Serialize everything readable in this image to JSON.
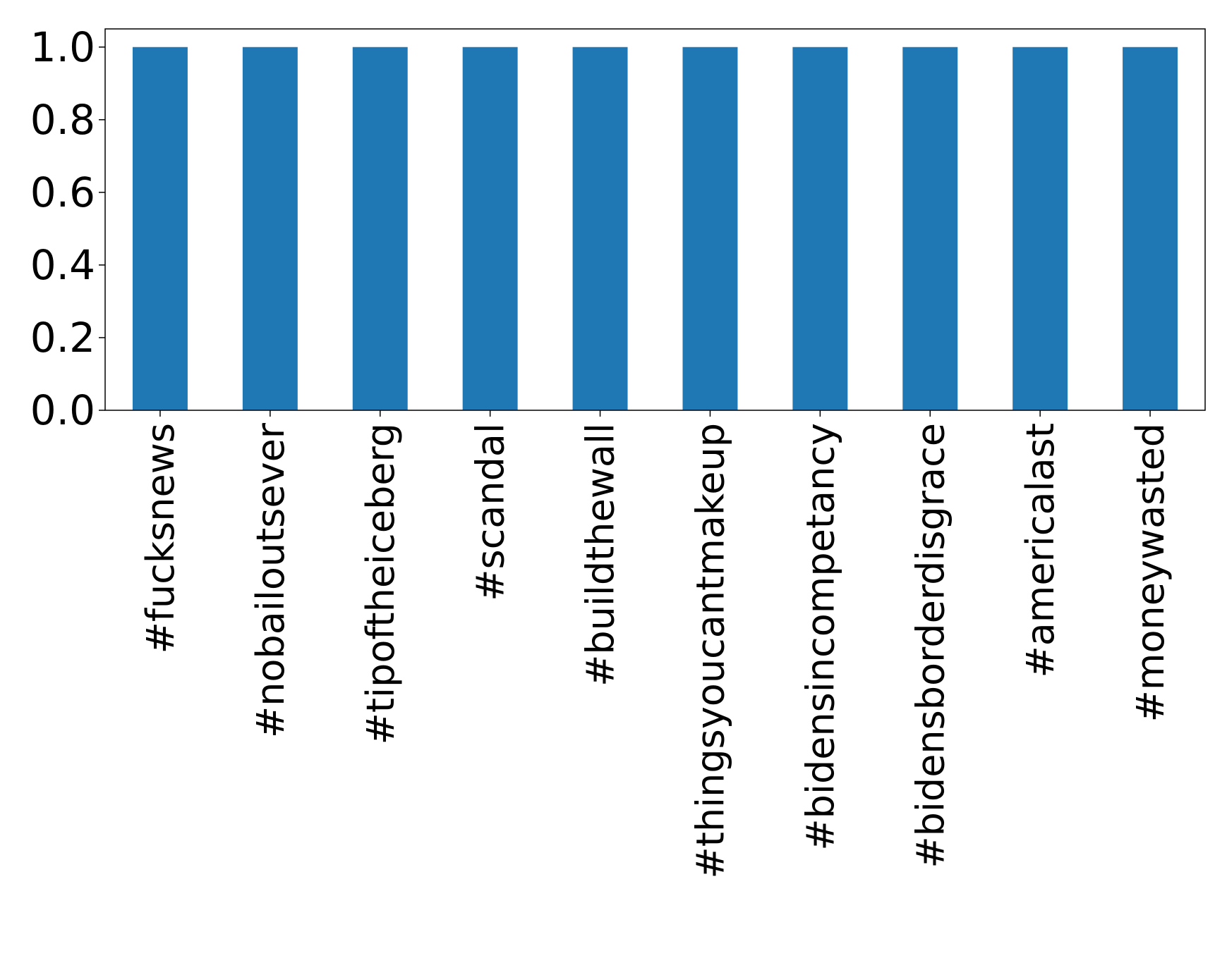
{
  "chart_data": {
    "type": "bar",
    "categories": [
      "#fucksnews",
      "#nobailoutsever",
      "#tipoftheiceberg",
      "#scandal",
      "#buildthewall",
      "#thingsyoucantmakeup",
      "#bidensincompetancy",
      "#bidensborderdisgrace",
      "#americalast",
      "#moneywasted"
    ],
    "values": [
      1,
      1,
      1,
      1,
      1,
      1,
      1,
      1,
      1,
      1
    ],
    "color": "#1f77b4",
    "ylim": [
      0,
      1.05
    ],
    "yticks": [
      {
        "value": 0,
        "label": "0.0"
      },
      {
        "value": 0.2,
        "label": "0.2"
      },
      {
        "value": 0.4,
        "label": "0.4"
      },
      {
        "value": 0.6,
        "label": "0.6"
      },
      {
        "value": 0.8,
        "label": "0.8"
      },
      {
        "value": 1,
        "label": "1.0"
      }
    ],
    "grid": false
  }
}
